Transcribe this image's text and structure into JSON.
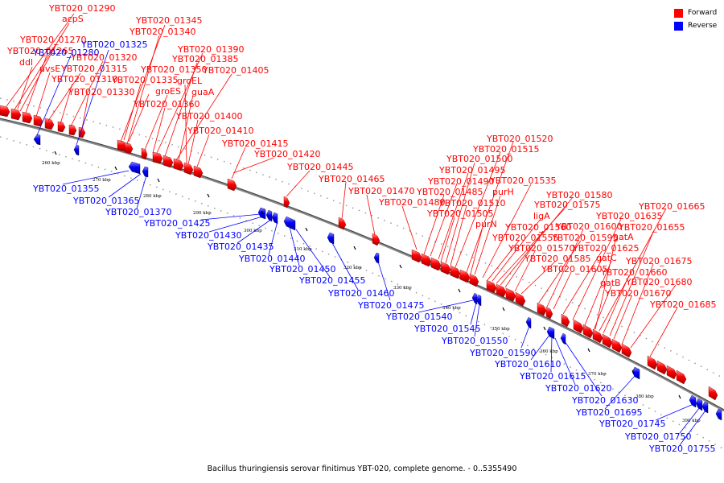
{
  "legend": {
    "forward_label": "Forward",
    "reverse_label": "Reverse",
    "forward_color": "#ff0000",
    "reverse_color": "#0000ff"
  },
  "caption": "Bacillus thuringiensis serovar finitimus YBT-020, complete genome. - 0..5355490",
  "ticks": [
    "260 kbp",
    "270 kbp",
    "280 kbp",
    "290 kbp",
    "300 kbp",
    "310 kbp",
    "320 kbp",
    "330 kbp",
    "340 kbp",
    "350 kbp",
    "360 kbp",
    "370 kbp",
    "380 kbp",
    "390 kbp"
  ],
  "forward_labels": [
    "YBT020_01290",
    "acpS",
    "YBT020_01270",
    "YBT020_01265",
    "ddl",
    "uvsE",
    "YBT020_01315",
    "YBT020_01310",
    "YBT020_01330",
    "YBT020_01320",
    "YBT020_01345",
    "YBT020_01340",
    "YBT020_01390",
    "YBT020_01385",
    "YBT020_01405",
    "groEL",
    "YBT020_01335",
    "YBT020_01350",
    "groES",
    "guaA",
    "YBT020_01360",
    "YBT020_01400",
    "YBT020_01410",
    "YBT020_01415",
    "YBT020_01420",
    "YBT020_01445",
    "YBT020_01465",
    "YBT020_01470",
    "YBT020_01480",
    "YBT020_01520",
    "YBT020_01515",
    "YBT020_01500",
    "YBT020_01495",
    "YBT020_01490",
    "YBT020_01535",
    "YBT020_01485",
    "purH",
    "YBT020_01510",
    "YBT020_01505",
    "purN",
    "YBT020_01580",
    "YBT020_01575",
    "ligA",
    "YBT020_01560",
    "YBT020_01555",
    "YBT020_01570",
    "YBT020_01585",
    "YBT020_01665",
    "YBT020_01635",
    "YBT020_01600",
    "YBT020_01655",
    "YBT020_01595",
    "gatA",
    "YBT020_01625",
    "gatC",
    "YBT020_01605",
    "YBT020_01675",
    "YBT020_01660",
    "gatB",
    "YBT020_01680",
    "YBT020_01670",
    "YBT020_01685"
  ],
  "reverse_labels": [
    "YBT020_01280",
    "YBT020_01325",
    "YBT020_01355",
    "YBT020_01365",
    "YBT020_01370",
    "YBT020_01425",
    "YBT020_01430",
    "YBT020_01435",
    "YBT020_01440",
    "YBT020_01450",
    "YBT020_01455",
    "YBT020_01460",
    "YBT020_01475",
    "YBT020_01540",
    "YBT020_01545",
    "YBT020_01550",
    "YBT020_01590",
    "YBT020_01610",
    "YBT020_01615",
    "YBT020_01620",
    "YBT020_01630",
    "YBT020_01695",
    "YBT020_01745",
    "YBT020_01750",
    "YBT020_01755"
  ]
}
